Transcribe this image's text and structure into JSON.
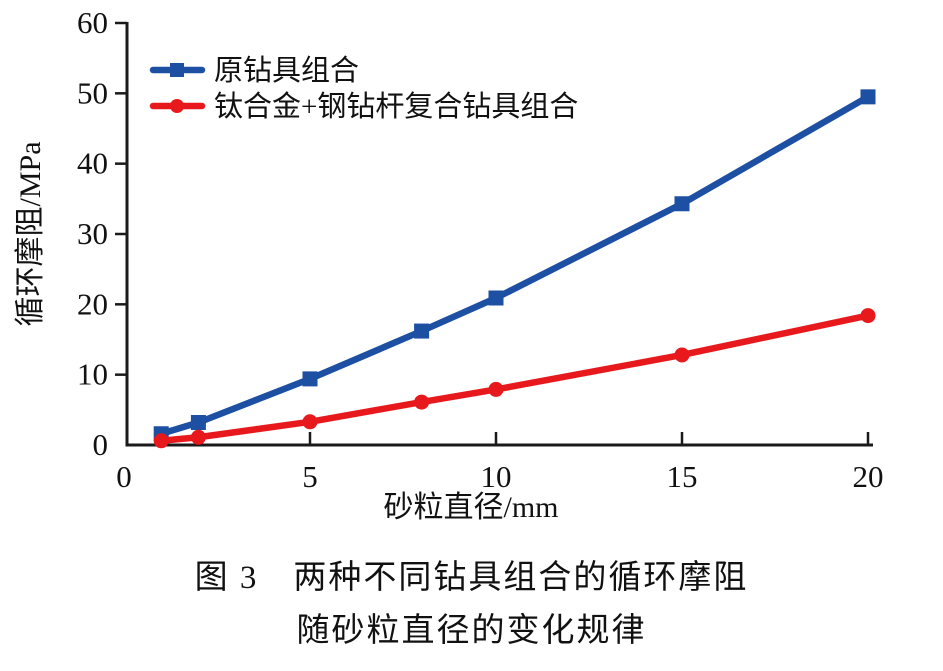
{
  "figure": {
    "caption_line1": "图 3　两种不同钻具组合的循环摩阻",
    "caption_line2": "随砂粒直径的变化规律"
  },
  "chart_data": {
    "type": "line",
    "title": "",
    "xlabel": "砂粒直径/mm",
    "ylabel": "循环摩阻/MPa",
    "xlim": [
      0,
      20
    ],
    "ylim": [
      0,
      60
    ],
    "x_ticks": [
      0,
      5,
      10,
      15,
      20
    ],
    "y_ticks": [
      0,
      10,
      20,
      30,
      40,
      50,
      60
    ],
    "grid": false,
    "legend_position": "top-left-inside",
    "axis_color": "#1a1a1a",
    "x": [
      1,
      2,
      5,
      8,
      10,
      15,
      20
    ],
    "series": [
      {
        "name": "原钻具组合",
        "color": "#1d4fa3",
        "marker": "square",
        "values": [
          1.6,
          3.2,
          9.4,
          16.2,
          20.9,
          34.3,
          49.5
        ]
      },
      {
        "name": "钛合金+钢钻杆复合钻具组合",
        "color": "#e8191c",
        "marker": "circle",
        "values": [
          0.6,
          1.1,
          3.3,
          6.1,
          7.9,
          12.8,
          18.4
        ]
      }
    ]
  }
}
